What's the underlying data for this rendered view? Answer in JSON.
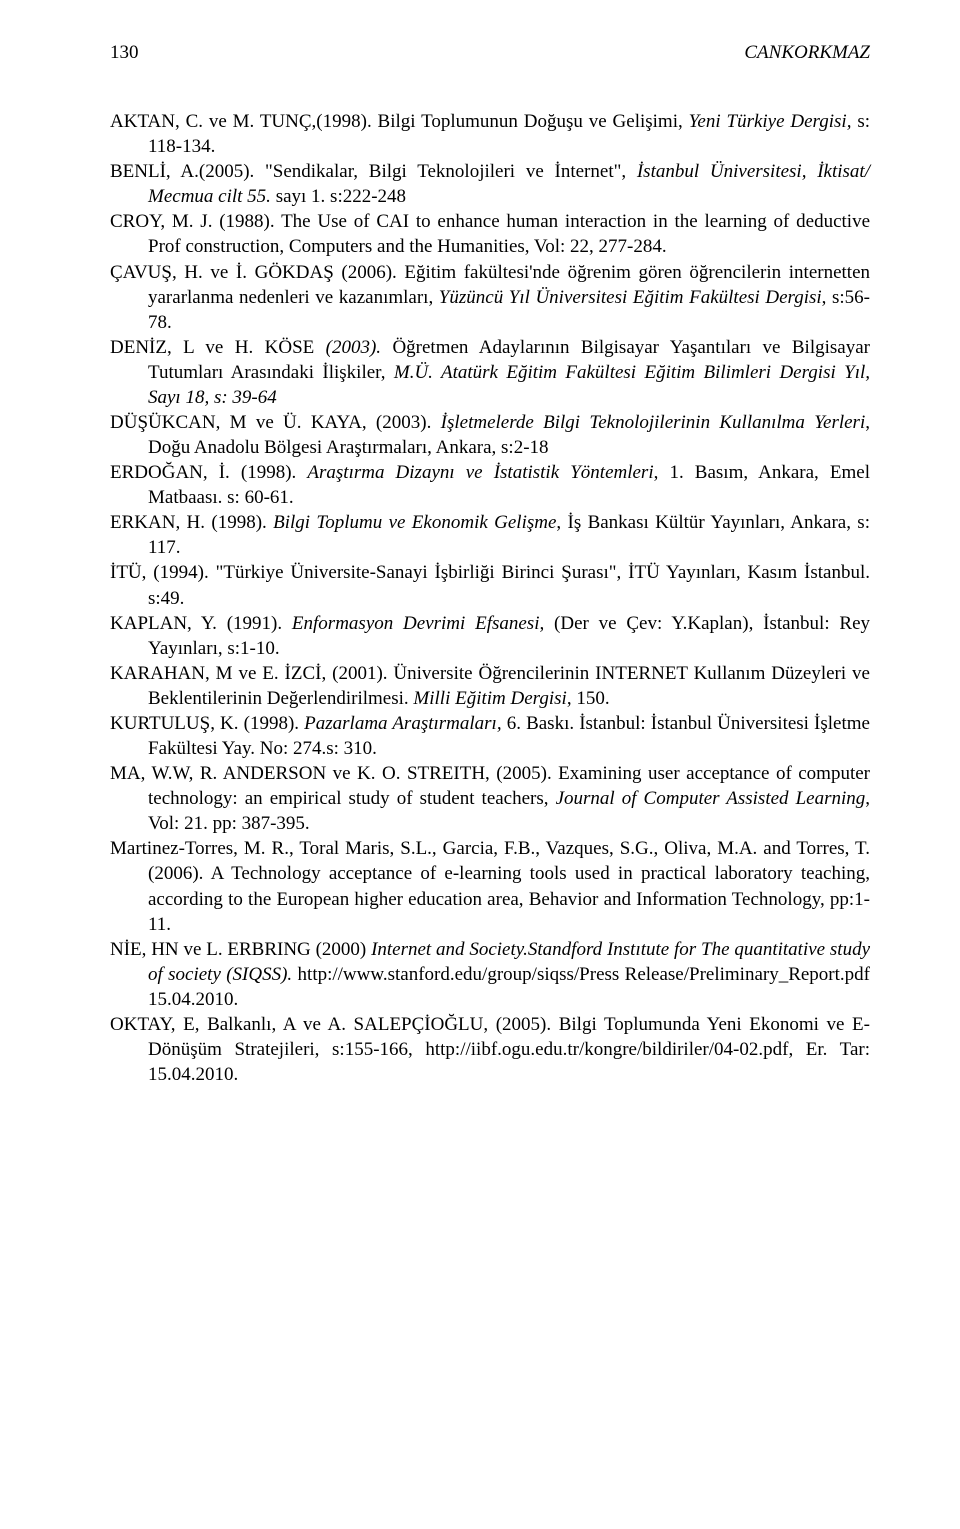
{
  "header": {
    "page_number": "130",
    "author": "CANKORKMAZ"
  },
  "refs": {
    "r1": {
      "a": "AKTAN, C. ve M. TUNÇ,(1998). Bilgi Toplumunun Doğuşu ve Gelişimi, ",
      "i": "Yeni Türkiye Dergisi,",
      "b": " s: 118-134."
    },
    "r2": {
      "a": "BENLİ, A.(2005). \"Sendikalar, Bilgi Teknolojileri ve İnternet\", ",
      "i": "İstanbul Üniversitesi, İktisat/ Mecmua cilt 55.",
      "b": " sayı 1. s:222-248"
    },
    "r3": {
      "a": "CROY, M. J. (1988). The Use of CAI to enhance human interaction in the learning of deductive Prof construction, Computers and the Humanities, Vol: 22, 277-284."
    },
    "r4": {
      "a": "ÇAVUŞ, H. ve İ. GÖKDAŞ (2006). Eğitim fakültesi'nde öğrenim gören öğrencilerin internetten yararlanma nedenleri ve kazanımları, ",
      "i": "Yüzüncü Yıl Üniversitesi Eğitim Fakültesi Dergisi",
      "b": ", s:56-78."
    },
    "r5": {
      "a": "DENİZ, L ve H. KÖSE ",
      "i1": "(2003).",
      "b": " Öğretmen Adaylarının Bilgisayar Yaşantıları ve Bilgisayar Tutumları Arasındaki İlişkiler, ",
      "i2": "M.Ü. Atatürk Eğitim Fakültesi Eğitim Bilimleri Dergisi Yıl, Sayı 18, s: 39-64"
    },
    "r6": {
      "a": "DÜŞÜKCAN, M ve Ü. KAYA, (2003). ",
      "i": "İşletmelerde Bilgi Teknolojilerinin Kullanılma Yerleri",
      "b": ", Doğu Anadolu Bölgesi Araştırmaları, Ankara, s:2-18"
    },
    "r7": {
      "a": "ERDOĞAN, İ. (1998). ",
      "i": "Araştırma Dizaynı ve İstatistik Yöntemleri",
      "b": ", 1. Basım, Ankara, Emel Matbaası. s: 60-61."
    },
    "r8": {
      "a": "ERKAN, H. (1998). ",
      "i": "Bilgi Toplumu ve Ekonomik Gelişme",
      "b": ", İş Bankası Kültür Yayınları, Ankara, s: 117."
    },
    "r9": {
      "a": "İTÜ, (1994). \"Türkiye Üniversite-Sanayi İşbirliği Birinci Şurası\", İTÜ Yayınları, Kasım İstanbul. s:49."
    },
    "r10": {
      "a": "KAPLAN, Y. (1991). ",
      "i": "Enformasyon Devrimi Efsanesi,",
      "b": " (Der ve Çev: Y.Kaplan), İstanbul: Rey Yayınları, s:1-10."
    },
    "r11": {
      "a": "KARAHAN, M ve E. İZCİ, (2001). Üniversite Öğrencilerinin INTERNET Kullanım Düzeyleri ve Beklentilerinin Değerlendirilmesi. ",
      "i": "Milli Eğitim Dergisi",
      "b": ", 150."
    },
    "r12": {
      "a": "KURTULUŞ, K. (1998). ",
      "i": "Pazarlama Araştırmaları,",
      "b": " 6. Baskı. İstanbul: İstanbul Üniversitesi İşletme Fakültesi Yay. No: 274.s: 310."
    },
    "r13": {
      "a": "MA, W.W, R. ANDERSON ve K. O. STREITH, (2005). Examining user acceptance of computer technology: an empirical study of student teachers, ",
      "i": "Journal of Computer Assisted Learning",
      "b": ", Vol: 21. pp: 387-395."
    },
    "r14": {
      "a": "Martinez-Torres, M. R., Toral Maris, S.L., Garcia, F.B., Vazques, S.G., Oliva, M.A. and Torres, T. (2006). A Technology acceptance of e-learning tools used in practical laboratory teaching, according to the European higher education area, Behavior and Information Technology, pp:1-11."
    },
    "r15": {
      "a": "NİE, HN ve L. ERBRING (2000) ",
      "i": "Internet and Society.Standford Instıtute for The quantitative study of society (SIQSS).",
      "b": " http:",
      "link": "//www.stanford.edu/group/siqss/Press",
      "b2": " Release/Preliminary_Report.pdf 15.04.2010."
    },
    "r16": {
      "a": "OKTAY, E, Balkanlı, A ve A. SALEPÇİOĞLU, (2005). Bilgi Toplumunda Yeni Ekonomi ve E-Dönüşüm Stratejileri, s:155-166, ",
      "link": "http://iibf.ogu.edu.tr/kongre/bildiriler/04-02.pdf",
      "b": ", Er. Tar: 15.04.2010."
    }
  }
}
